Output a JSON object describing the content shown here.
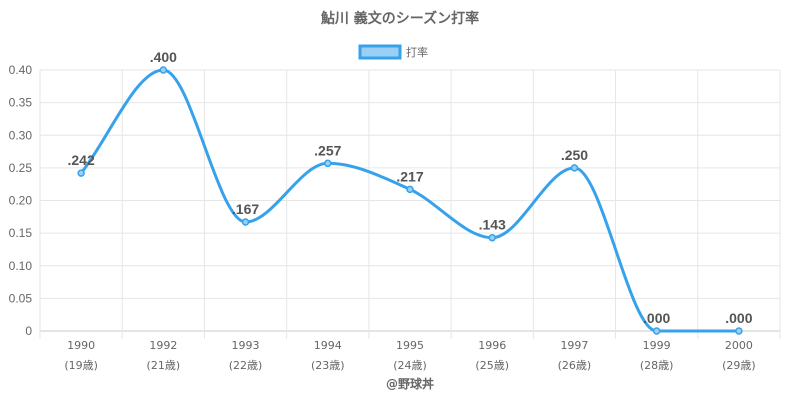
{
  "chart_data": {
    "type": "line",
    "title": "鮎川 義文のシーズン打率",
    "legend": {
      "label": "打率",
      "position": "top",
      "color": "#36a2eb",
      "fill": "#9ad0f5"
    },
    "categories": [
      "1990",
      "1992",
      "1993",
      "1994",
      "1995",
      "1996",
      "1997",
      "1999",
      "2000"
    ],
    "category_sublabels": [
      "(19歳)",
      "(21歳)",
      "(22歳)",
      "(23歳)",
      "(24歳)",
      "(25歳)",
      "(26歳)",
      "(28歳)",
      "(29歳)"
    ],
    "series": [
      {
        "name": "打率",
        "values": [
          0.242,
          0.4,
          0.167,
          0.257,
          0.217,
          0.143,
          0.25,
          0,
          0
        ],
        "data_labels": [
          ".242",
          ".400",
          ".167",
          ".257",
          ".217",
          ".143",
          ".250",
          ".000",
          ".000"
        ],
        "color": "#36a2eb"
      }
    ],
    "ylim": [
      0,
      0.4
    ],
    "y_ticks": [
      "0",
      "0.05",
      "0.10",
      "0.15",
      "0.20",
      "0.25",
      "0.30",
      "0.35",
      "0.40"
    ],
    "grid": true,
    "credit": "@野球丼"
  }
}
